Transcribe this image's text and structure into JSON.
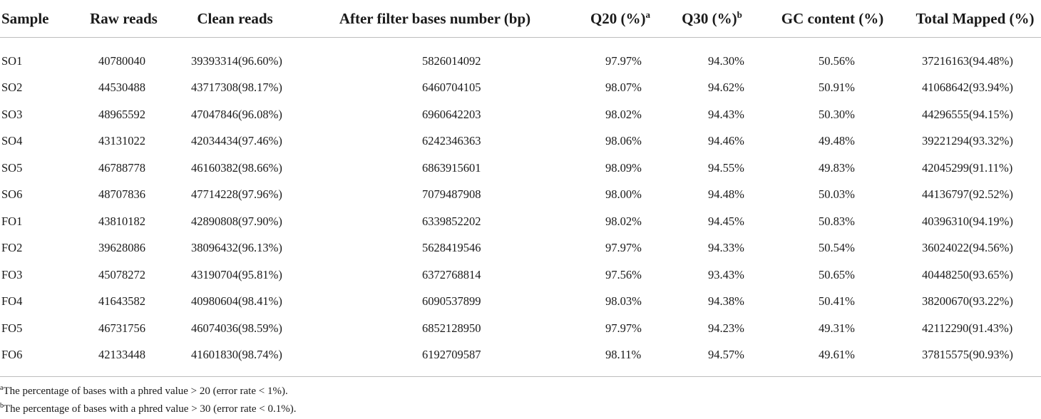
{
  "table": {
    "headers": {
      "sample": "Sample",
      "raw": "Raw reads",
      "clean": "Clean reads",
      "bases": "After filter bases number (bp)",
      "q20": "Q20 (%)",
      "q20_mark": "a",
      "q30": "Q30 (%)",
      "q30_mark": "b",
      "gc": "GC content (%)",
      "mapped": "Total Mapped (%)"
    },
    "rows": [
      {
        "sample": "SO1",
        "raw": "40780040",
        "clean": "39393314(96.60%)",
        "bases": "5826014092",
        "q20": "97.97%",
        "q30": "94.30%",
        "gc": "50.56%",
        "mapped": "37216163(94.48%)"
      },
      {
        "sample": "SO2",
        "raw": "44530488",
        "clean": "43717308(98.17%)",
        "bases": "6460704105",
        "q20": "98.07%",
        "q30": "94.62%",
        "gc": "50.91%",
        "mapped": "41068642(93.94%)"
      },
      {
        "sample": "SO3",
        "raw": "48965592",
        "clean": "47047846(96.08%)",
        "bases": "6960642203",
        "q20": "98.02%",
        "q30": "94.43%",
        "gc": "50.30%",
        "mapped": "44296555(94.15%)"
      },
      {
        "sample": "SO4",
        "raw": "43131022",
        "clean": "42034434(97.46%)",
        "bases": "6242346363",
        "q20": "98.06%",
        "q30": "94.46%",
        "gc": "49.48%",
        "mapped": "39221294(93.32%)"
      },
      {
        "sample": "SO5",
        "raw": "46788778",
        "clean": "46160382(98.66%)",
        "bases": "6863915601",
        "q20": "98.09%",
        "q30": "94.55%",
        "gc": "49.83%",
        "mapped": "42045299(91.11%)"
      },
      {
        "sample": "SO6",
        "raw": "48707836",
        "clean": "47714228(97.96%)",
        "bases": "7079487908",
        "q20": "98.00%",
        "q30": "94.48%",
        "gc": "50.03%",
        "mapped": "44136797(92.52%)"
      },
      {
        "sample": "FO1",
        "raw": "43810182",
        "clean": "42890808(97.90%)",
        "bases": "6339852202",
        "q20": "98.02%",
        "q30": "94.45%",
        "gc": "50.83%",
        "mapped": "40396310(94.19%)"
      },
      {
        "sample": "FO2",
        "raw": "39628086",
        "clean": "38096432(96.13%)",
        "bases": "5628419546",
        "q20": "97.97%",
        "q30": "94.33%",
        "gc": "50.54%",
        "mapped": "36024022(94.56%)"
      },
      {
        "sample": "FO3",
        "raw": "45078272",
        "clean": "43190704(95.81%)",
        "bases": "6372768814",
        "q20": "97.56%",
        "q30": "93.43%",
        "gc": "50.65%",
        "mapped": "40448250(93.65%)"
      },
      {
        "sample": "FO4",
        "raw": "41643582",
        "clean": "40980604(98.41%)",
        "bases": "6090537899",
        "q20": "98.03%",
        "q30": "94.38%",
        "gc": "50.41%",
        "mapped": "38200670(93.22%)"
      },
      {
        "sample": "FO5",
        "raw": "46731756",
        "clean": "46074036(98.59%)",
        "bases": "6852128950",
        "q20": "97.97%",
        "q30": "94.23%",
        "gc": "49.31%",
        "mapped": "42112290(91.43%)"
      },
      {
        "sample": "FO6",
        "raw": "42133448",
        "clean": "41601830(98.74%)",
        "bases": "6192709587",
        "q20": "98.11%",
        "q30": "94.57%",
        "gc": "49.61%",
        "mapped": "37815575(90.93%)"
      }
    ]
  },
  "footnotes": {
    "a_mark": "a",
    "a_text": "The percentage of bases with a phred value > 20 (error rate < 1%).",
    "b_mark": "b",
    "b_text": "The percentage of bases with a phred value > 30 (error rate < 0.1%)."
  }
}
